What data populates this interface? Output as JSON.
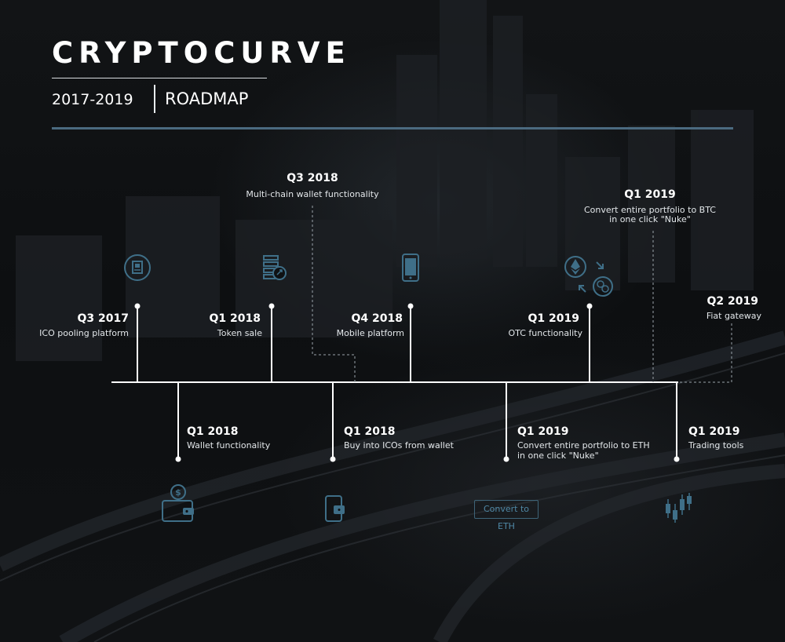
{
  "header": {
    "brand": "CRYPTOCURVE",
    "years": "2017-2019",
    "title": "ROADMAP"
  },
  "colors": {
    "accent": "#4b6a80",
    "icon": "#3f6f88",
    "line": "#ffffff"
  },
  "milestones_top": [
    {
      "quarter": "Q3 2017",
      "desc": [
        "ICO pooling platform"
      ],
      "icon": "chip-icon"
    },
    {
      "quarter": "Q1 2018",
      "desc": [
        "Token sale"
      ],
      "icon": "coins-icon"
    },
    {
      "quarter": "Q4 2018",
      "desc": [
        "Mobile platform"
      ],
      "icon": "mobile-icon"
    },
    {
      "quarter": "Q1 2019",
      "desc": [
        "OTC functionality"
      ],
      "icon": "exchange-icon"
    }
  ],
  "milestones_bottom": [
    {
      "quarter": "Q1 2018",
      "desc": [
        "Wallet functionality"
      ],
      "icon": "wallet-icon"
    },
    {
      "quarter": "Q1 2018",
      "desc": [
        "Buy into ICOs from wallet"
      ],
      "icon": "phone-wallet-icon"
    },
    {
      "quarter": "Q1 2019",
      "desc": [
        "Convert entire portfolio to ETH",
        "in one click \"Nuke\""
      ],
      "icon": "convert-eth-icon",
      "badge": "Convert to ETH"
    },
    {
      "quarter": "Q1 2019",
      "desc": [
        "Trading tools"
      ],
      "icon": "candlestick-icon"
    }
  ],
  "milestones_dashed": [
    {
      "quarter": "Q3 2018",
      "desc": [
        "Multi-chain wallet functionality"
      ]
    },
    {
      "quarter": "Q1 2019",
      "desc": [
        "Convert entire portfolio to BTC",
        "in one click \"Nuke\""
      ]
    },
    {
      "quarter": "Q2 2019",
      "desc": [
        "Fiat gateway"
      ]
    }
  ]
}
